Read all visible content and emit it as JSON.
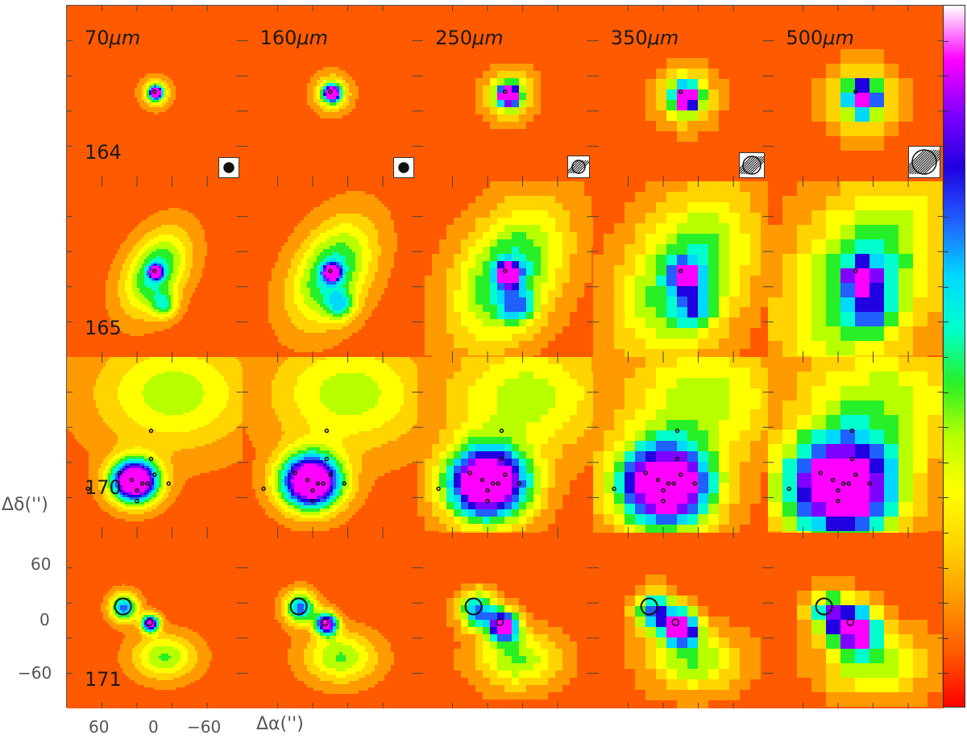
{
  "figure": {
    "wavelengths": [
      "70",
      "160",
      "250",
      "350",
      "500"
    ],
    "wavelength_unit": "μm",
    "sources": [
      "164",
      "165",
      "170",
      "171"
    ],
    "axes": {
      "x_label": "Δα('')",
      "y_label": "Δδ('')",
      "x_ticks": [
        "60",
        "0",
        "−60"
      ],
      "y_ticks": [
        "60",
        "0",
        "−60"
      ]
    },
    "colorbar_colors": [
      "#ff0000",
      "#ff5a00",
      "#ff9a00",
      "#ffd400",
      "#ffff00",
      "#b8ff00",
      "#28f028",
      "#00ffcc",
      "#00d8ff",
      "#2060ff",
      "#2000e0",
      "#8000ff",
      "#ff00ff",
      "#ffffff"
    ]
  }
}
